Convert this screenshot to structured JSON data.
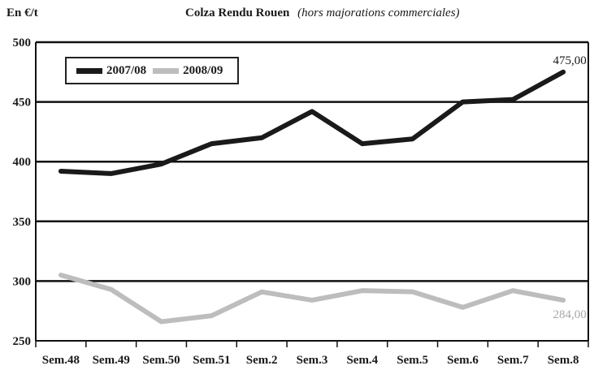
{
  "chart_data": {
    "type": "line",
    "title": "Colza Rendu Rouen",
    "subtitle": "(hors majorations commerciales)",
    "ylabel": "En €/t",
    "xlabel": "",
    "ylim": [
      250,
      500
    ],
    "yticks": [
      "500",
      "450",
      "400",
      "350",
      "300",
      "250"
    ],
    "grid": true,
    "legend_position": "top-left",
    "categories": [
      "Sem.48",
      "Sem.49",
      "Sem.50",
      "Sem.51",
      "Sem.2",
      "Sem.3",
      "Sem.4",
      "Sem.5",
      "Sem.6",
      "Sem.7",
      "Sem.8"
    ],
    "series": [
      {
        "name": "2007/08",
        "color": "#1a1a1a",
        "values": [
          392,
          390,
          398,
          415,
          420,
          442,
          415,
          419,
          450,
          452,
          475
        ],
        "end_label": "475,00"
      },
      {
        "name": "2008/09",
        "color": "#bdbdbd",
        "values": [
          305,
          293,
          266,
          271,
          291,
          284,
          292,
          291,
          278,
          292,
          284
        ],
        "end_label": "284,00"
      }
    ]
  }
}
